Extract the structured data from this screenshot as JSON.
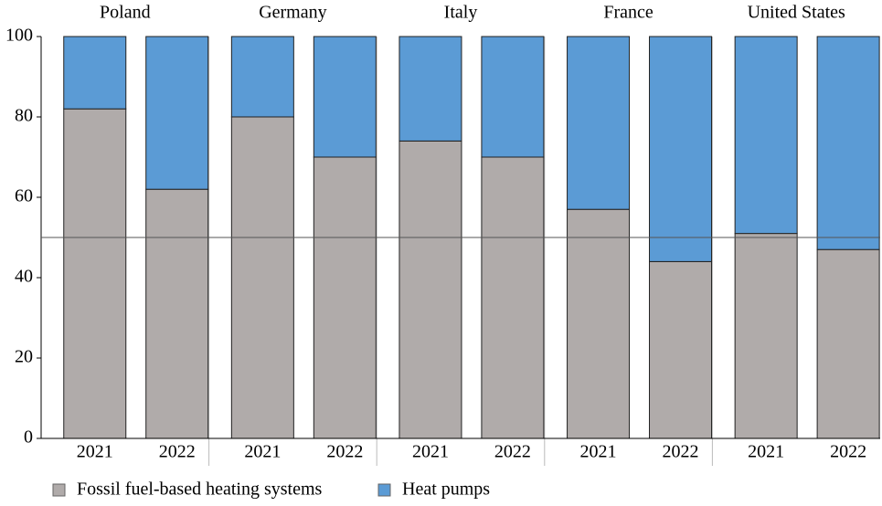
{
  "chart_data": {
    "type": "stacked_bar",
    "groups": [
      "Poland",
      "Germany",
      "Italy",
      "France",
      "United States"
    ],
    "categories": [
      "2021",
      "2022",
      "2021",
      "2022",
      "2021",
      "2022",
      "2021",
      "2022",
      "2021",
      "2022"
    ],
    "series": [
      {
        "name": "Fossil fuel-based heating systems",
        "color": "#b0abaa",
        "values": [
          82,
          62,
          80,
          70,
          74,
          70,
          57,
          44,
          51,
          47
        ]
      },
      {
        "name": "Heat pumps",
        "color": "#5b9bd5",
        "values": [
          18,
          38,
          20,
          30,
          26,
          30,
          43,
          56,
          49,
          53
        ]
      }
    ],
    "ylim": [
      0,
      100
    ],
    "yticks": [
      0,
      20,
      40,
      60,
      80,
      100
    ],
    "reference_line": 50,
    "legend": "bottom"
  }
}
